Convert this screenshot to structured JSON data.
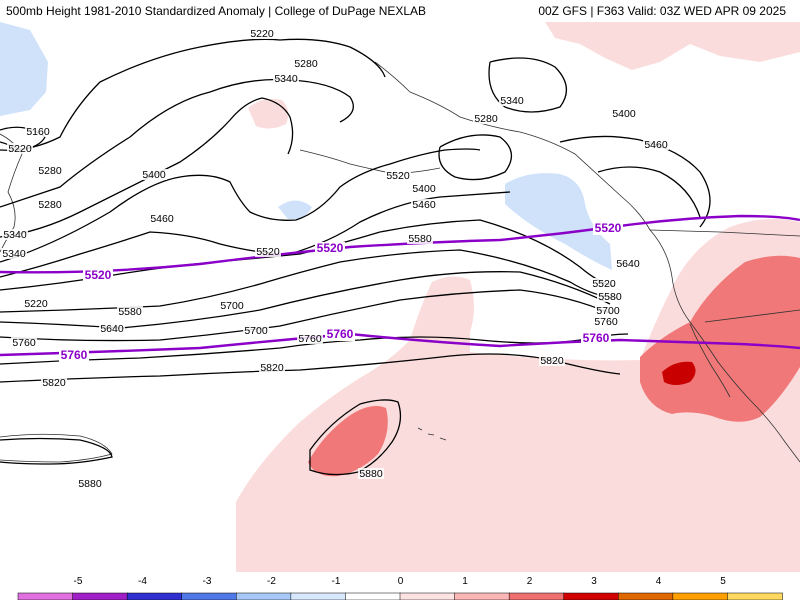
{
  "header": {
    "left": "500mb Height 1981-2010 Standardized Anomaly | College of DuPage NEXLAB",
    "right": "00Z GFS | F363 Valid: 03Z WED APR 09 2025"
  },
  "legend": {
    "ticks": [
      "-5",
      "-4",
      "-3",
      "-2",
      "-1",
      "0",
      "1",
      "2",
      "3",
      "4",
      "5"
    ],
    "colors": [
      "#e070e0",
      "#a020c8",
      "#3030d0",
      "#5078e8",
      "#a8c8f8",
      "#d8e8fc",
      "#ffffff",
      "#fde2e2",
      "#fbb6b6",
      "#f07070",
      "#d00000",
      "#e06800",
      "#ffa000",
      "#ffd860"
    ]
  },
  "map": {
    "contour_labels": [
      "5160",
      "5220",
      "5280",
      "5340",
      "5220",
      "5280",
      "5340",
      "5400",
      "5460",
      "5520",
      "5580",
      "5640",
      "5700",
      "5760",
      "5820",
      "5880",
      "5220",
      "5280",
      "5340",
      "5400",
      "5460",
      "5520",
      "5580",
      "5640",
      "5700",
      "5760",
      "5820",
      "5880",
      "5340",
      "5280",
      "5400",
      "5460",
      "5520",
      "5580",
      "5700",
      "5760",
      "5820"
    ],
    "highlight_labels": [
      "5520",
      "5520",
      "5520",
      "5760",
      "5760",
      "5760"
    ],
    "colors": {
      "highlight": "#8b00c8",
      "contour": "#000000",
      "coast": "#303030"
    }
  }
}
